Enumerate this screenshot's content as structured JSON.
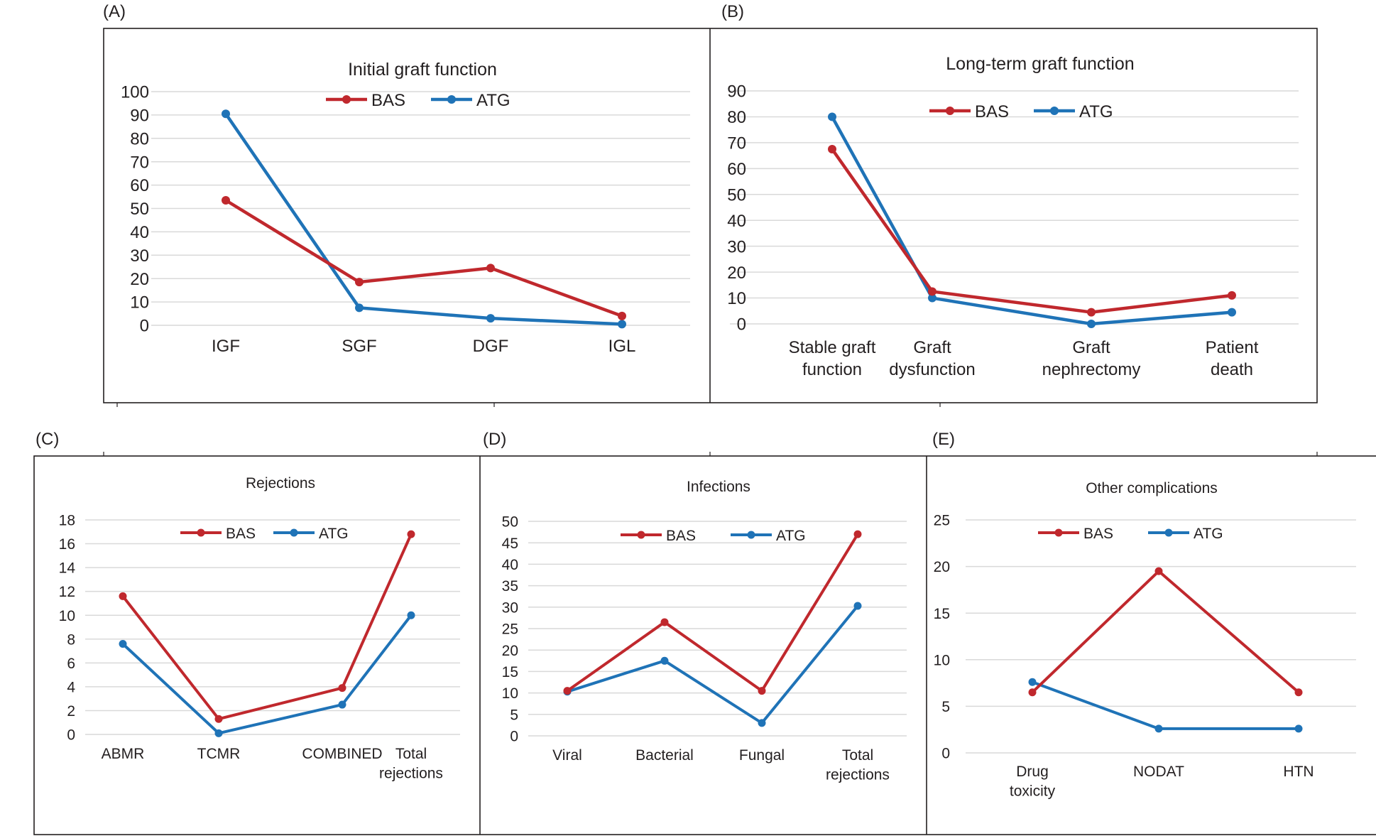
{
  "colors": {
    "BAS": "#c0282d",
    "ATG": "#1f73b7",
    "grid": "#d9d9d9",
    "frame": "#231f20"
  },
  "chart_data": [
    {
      "panel": "(A)",
      "type": "line",
      "title": "Initial graft function",
      "categories": [
        "IGF",
        "SGF",
        "DGF",
        "IGL"
      ],
      "series": [
        {
          "name": "BAS",
          "values": [
            53.5,
            18.5,
            24.5,
            4
          ]
        },
        {
          "name": "ATG",
          "values": [
            90.5,
            7.5,
            3,
            0.5
          ]
        }
      ],
      "yticks": [
        0,
        10,
        20,
        30,
        40,
        50,
        60,
        70,
        80,
        90,
        100
      ],
      "ylim": [
        0,
        100
      ],
      "grid": true,
      "legend": "top"
    },
    {
      "panel": "(B)",
      "type": "line",
      "title": "Long-term graft function",
      "categories": [
        [
          "Stable graft",
          "function"
        ],
        [
          "Graft",
          "dysfunction"
        ],
        [
          "Graft",
          "nephrectomy"
        ],
        [
          "Patient",
          "death"
        ]
      ],
      "series": [
        {
          "name": "BAS",
          "values": [
            67.5,
            12.5,
            4.5,
            11
          ]
        },
        {
          "name": "ATG",
          "values": [
            80,
            10,
            0,
            4.5
          ]
        }
      ],
      "yticks": [
        0,
        10,
        20,
        30,
        40,
        50,
        60,
        70,
        80,
        90
      ],
      "ylim": [
        0,
        90
      ],
      "grid": true,
      "legend": "top"
    },
    {
      "panel": "(C)",
      "type": "line",
      "title": "Rejections",
      "categories": [
        [
          "ABMR"
        ],
        [
          "TCMR"
        ],
        [
          "COMBINED"
        ],
        [
          "Total",
          "rejections"
        ]
      ],
      "series": [
        {
          "name": "BAS",
          "values": [
            11.6,
            1.3,
            3.9,
            16.8
          ]
        },
        {
          "name": "ATG",
          "values": [
            7.6,
            0.1,
            2.5,
            10
          ]
        }
      ],
      "yticks": [
        0,
        2,
        4,
        6,
        8,
        10,
        12,
        14,
        16,
        18
      ],
      "ylim": [
        0,
        18
      ],
      "grid": true,
      "legend": "top"
    },
    {
      "panel": "(D)",
      "type": "line",
      "title": "Infections",
      "categories": [
        [
          "Viral"
        ],
        [
          "Bacterial"
        ],
        [
          "Fungal"
        ],
        [
          "Total",
          "rejections"
        ]
      ],
      "series": [
        {
          "name": "BAS",
          "values": [
            10.5,
            26.5,
            10.5,
            47
          ]
        },
        {
          "name": "ATG",
          "values": [
            10.3,
            17.5,
            3,
            30.3
          ]
        }
      ],
      "yticks": [
        0,
        5,
        10,
        15,
        20,
        25,
        30,
        35,
        40,
        45,
        50
      ],
      "ylim": [
        0,
        50
      ],
      "grid": true,
      "legend": "top"
    },
    {
      "panel": "(E)",
      "type": "line",
      "title": "Other complications",
      "categories": [
        [
          "Drug",
          "toxicity"
        ],
        [
          "NODAT"
        ],
        [
          "HTN"
        ]
      ],
      "series": [
        {
          "name": "BAS",
          "values": [
            6.5,
            19.5,
            6.5
          ]
        },
        {
          "name": "ATG",
          "values": [
            7.6,
            2.6,
            2.6
          ]
        }
      ],
      "yticks": [
        0,
        5,
        10,
        15,
        20,
        25
      ],
      "ylim": [
        0,
        25
      ],
      "grid": true,
      "legend": "top"
    }
  ]
}
